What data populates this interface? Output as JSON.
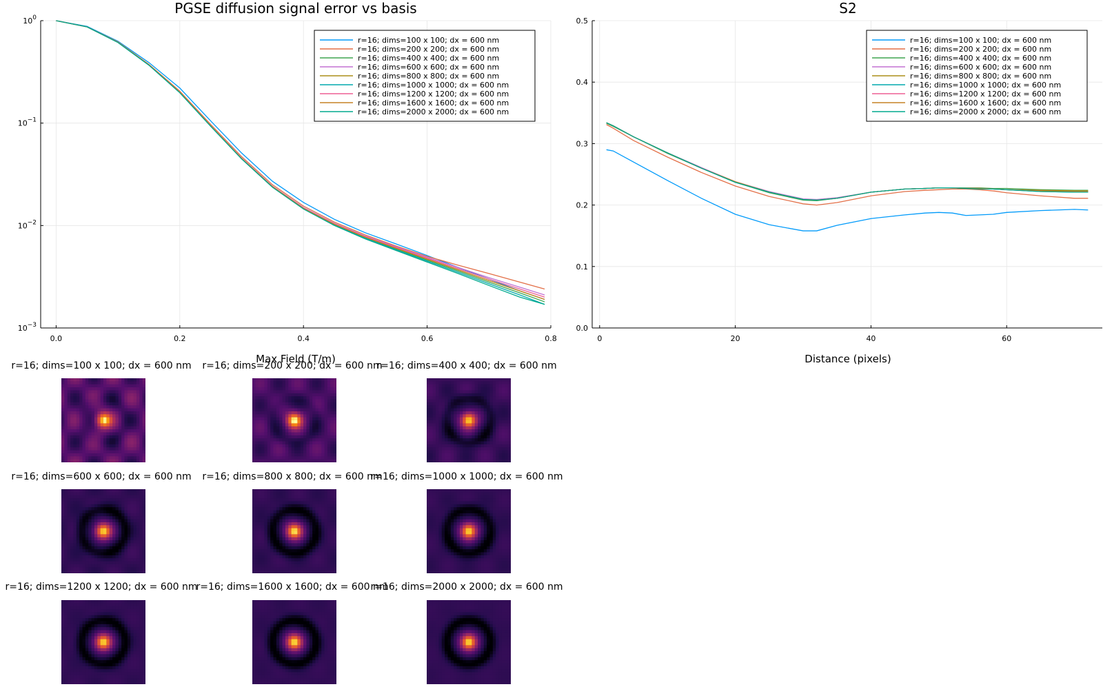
{
  "chart_data": [
    {
      "type": "line",
      "title": "PGSE diffusion signal error vs basis",
      "xlabel": "Max Field (T/m)",
      "ylabel": "",
      "y_scale": "log10",
      "xlim": [
        -0.025,
        0.8
      ],
      "ylim": [
        0.001,
        1
      ],
      "x_ticks": [
        0.0,
        0.2,
        0.4,
        0.6,
        0.8
      ],
      "x_tick_labels": [
        "0.0",
        "0.2",
        "0.4",
        "0.6",
        "0.8"
      ],
      "y_ticks": [
        0.001,
        0.01,
        0.1,
        1
      ],
      "y_tick_labels": [
        {
          "base": "10",
          "exp": "−3"
        },
        {
          "base": "10",
          "exp": "−2"
        },
        {
          "base": "10",
          "exp": "−1"
        },
        {
          "base": "10",
          "exp": "0"
        }
      ],
      "grid": true,
      "legend_position": "top-right",
      "x": [
        0.0,
        0.05,
        0.1,
        0.15,
        0.2,
        0.25,
        0.3,
        0.35,
        0.4,
        0.45,
        0.5,
        0.55,
        0.6,
        0.65,
        0.7,
        0.75,
        0.79
      ],
      "series": [
        {
          "name": "r=16; dims=100 x 100; dx = 600 nm",
          "color": "#009AFA",
          "values": [
            1.0,
            0.88,
            0.63,
            0.39,
            0.22,
            0.105,
            0.051,
            0.027,
            0.0168,
            0.0115,
            0.0085,
            0.0066,
            0.0051,
            0.0039,
            0.003,
            0.0023,
            0.0019
          ]
        },
        {
          "name": "r=16; dims=200 x 200; dx = 600 nm",
          "color": "#E36F47",
          "values": [
            1.0,
            0.87,
            0.62,
            0.375,
            0.205,
            0.097,
            0.047,
            0.025,
            0.0155,
            0.0108,
            0.0081,
            0.0063,
            0.005,
            0.0041,
            0.0034,
            0.0028,
            0.0024
          ]
        },
        {
          "name": "r=16; dims=400 x 400; dx = 600 nm",
          "color": "#3EA44E",
          "values": [
            1.0,
            0.87,
            0.615,
            0.37,
            0.2,
            0.094,
            0.045,
            0.0238,
            0.0147,
            0.0102,
            0.0076,
            0.0059,
            0.0046,
            0.0036,
            0.0028,
            0.0022,
            0.0018
          ]
        },
        {
          "name": "r=16; dims=600 x 600; dx = 600 nm",
          "color": "#C371D2",
          "values": [
            1.0,
            0.87,
            0.615,
            0.37,
            0.2,
            0.094,
            0.0455,
            0.0242,
            0.015,
            0.0105,
            0.0079,
            0.0062,
            0.0049,
            0.0039,
            0.0031,
            0.0025,
            0.0021
          ]
        },
        {
          "name": "r=16; dims=800 x 800; dx = 600 nm",
          "color": "#AC8D18",
          "values": [
            1.0,
            0.87,
            0.615,
            0.37,
            0.2,
            0.094,
            0.0452,
            0.024,
            0.0148,
            0.0103,
            0.0077,
            0.006,
            0.0047,
            0.0037,
            0.0029,
            0.0023,
            0.0019
          ]
        },
        {
          "name": "r=16; dims=1000 x 1000; dx = 600 nm",
          "color": "#00A9AD",
          "values": [
            1.0,
            0.87,
            0.612,
            0.368,
            0.198,
            0.093,
            0.0448,
            0.0237,
            0.0146,
            0.0101,
            0.0075,
            0.0058,
            0.0045,
            0.0035,
            0.0027,
            0.0021,
            0.0017
          ]
        },
        {
          "name": "r=16; dims=1200 x 1200; dx = 600 nm",
          "color": "#ED5E93",
          "values": [
            1.0,
            0.87,
            0.615,
            0.37,
            0.2,
            0.094,
            0.0452,
            0.024,
            0.0148,
            0.0104,
            0.0078,
            0.0061,
            0.0048,
            0.0038,
            0.003,
            0.0024,
            0.002
          ]
        },
        {
          "name": "r=16; dims=1600 x 1600; dx = 600 nm",
          "color": "#C68225",
          "values": [
            1.0,
            0.87,
            0.615,
            0.37,
            0.2,
            0.094,
            0.0451,
            0.0239,
            0.0147,
            0.0103,
            0.0077,
            0.006,
            0.0047,
            0.0037,
            0.0029,
            0.0023,
            0.0019
          ]
        },
        {
          "name": "r=16; dims=2000 x 2000; dx = 600 nm",
          "color": "#00A98D",
          "values": [
            1.0,
            0.87,
            0.612,
            0.368,
            0.198,
            0.093,
            0.0447,
            0.0236,
            0.0145,
            0.01,
            0.0074,
            0.0057,
            0.0044,
            0.0034,
            0.0026,
            0.002,
            0.0017
          ]
        }
      ]
    },
    {
      "type": "line",
      "title": "S2",
      "xlabel": "Distance (pixels)",
      "ylabel": "",
      "xlim": [
        -1.1,
        74.1
      ],
      "ylim": [
        0.0,
        0.5
      ],
      "x_ticks": [
        0,
        20,
        40,
        60
      ],
      "x_tick_labels": [
        "0",
        "20",
        "40",
        "60"
      ],
      "y_ticks": [
        0.0,
        0.1,
        0.2,
        0.3,
        0.4,
        0.5
      ],
      "y_tick_labels": [
        "0.0",
        "0.1",
        "0.2",
        "0.3",
        "0.4",
        "0.5"
      ],
      "grid": true,
      "legend_position": "top-right",
      "x": [
        1,
        2,
        5,
        10,
        15,
        20,
        25,
        30,
        32,
        35,
        40,
        45,
        48,
        50,
        52,
        54,
        56,
        58,
        60,
        65,
        70,
        72
      ],
      "series": [
        {
          "name": "r=16; dims=100 x 100; dx = 600 nm",
          "color": "#009AFA",
          "values": [
            0.29,
            0.288,
            0.27,
            0.24,
            0.211,
            0.185,
            0.168,
            0.158,
            0.158,
            0.167,
            0.178,
            0.184,
            0.187,
            0.188,
            0.187,
            0.183,
            0.184,
            0.185,
            0.188,
            0.191,
            0.193,
            0.192
          ]
        },
        {
          "name": "r=16; dims=200 x 200; dx = 600 nm",
          "color": "#E36F47",
          "values": [
            0.331,
            0.325,
            0.305,
            0.278,
            0.253,
            0.231,
            0.214,
            0.202,
            0.2,
            0.204,
            0.215,
            0.222,
            0.224,
            0.225,
            0.226,
            0.226,
            0.225,
            0.223,
            0.22,
            0.215,
            0.211,
            0.211
          ]
        },
        {
          "name": "r=16; dims=400 x 400; dx = 600 nm",
          "color": "#3EA44E",
          "values": [
            0.333,
            0.328,
            0.311,
            0.284,
            0.26,
            0.237,
            0.22,
            0.208,
            0.207,
            0.211,
            0.221,
            0.226,
            0.227,
            0.228,
            0.228,
            0.228,
            0.228,
            0.227,
            0.227,
            0.225,
            0.224,
            0.224
          ]
        },
        {
          "name": "r=16; dims=600 x 600; dx = 600 nm",
          "color": "#C371D2",
          "values": [
            0.334,
            0.329,
            0.311,
            0.285,
            0.261,
            0.238,
            0.222,
            0.21,
            0.209,
            0.212,
            0.221,
            0.226,
            0.227,
            0.228,
            0.228,
            0.227,
            0.227,
            0.226,
            0.225,
            0.223,
            0.222,
            0.222
          ]
        },
        {
          "name": "r=16; dims=800 x 800; dx = 600 nm",
          "color": "#AC8D18",
          "values": [
            0.334,
            0.329,
            0.311,
            0.285,
            0.26,
            0.238,
            0.221,
            0.209,
            0.208,
            0.211,
            0.221,
            0.226,
            0.227,
            0.228,
            0.228,
            0.227,
            0.227,
            0.226,
            0.225,
            0.224,
            0.223,
            0.223
          ]
        },
        {
          "name": "r=16; dims=1000 x 1000; dx = 600 nm",
          "color": "#00A9AD",
          "values": [
            0.334,
            0.329,
            0.311,
            0.285,
            0.26,
            0.237,
            0.221,
            0.209,
            0.208,
            0.211,
            0.221,
            0.226,
            0.227,
            0.228,
            0.228,
            0.227,
            0.226,
            0.226,
            0.225,
            0.222,
            0.221,
            0.221
          ]
        },
        {
          "name": "r=16; dims=1200 x 1200; dx = 600 nm",
          "color": "#ED5E93",
          "values": [
            0.334,
            0.329,
            0.311,
            0.285,
            0.26,
            0.238,
            0.221,
            0.209,
            0.208,
            0.211,
            0.221,
            0.226,
            0.227,
            0.228,
            0.228,
            0.227,
            0.227,
            0.226,
            0.225,
            0.223,
            0.222,
            0.222
          ]
        },
        {
          "name": "r=16; dims=1600 x 1600; dx = 600 nm",
          "color": "#C68225",
          "values": [
            0.334,
            0.329,
            0.311,
            0.285,
            0.26,
            0.238,
            0.221,
            0.209,
            0.208,
            0.211,
            0.221,
            0.226,
            0.227,
            0.228,
            0.228,
            0.227,
            0.227,
            0.226,
            0.225,
            0.223,
            0.222,
            0.222
          ]
        },
        {
          "name": "r=16; dims=2000 x 2000; dx = 600 nm",
          "color": "#00A98D",
          "values": [
            0.334,
            0.329,
            0.311,
            0.285,
            0.26,
            0.237,
            0.221,
            0.209,
            0.208,
            0.211,
            0.221,
            0.226,
            0.227,
            0.228,
            0.228,
            0.227,
            0.226,
            0.226,
            0.225,
            0.222,
            0.221,
            0.221
          ]
        }
      ]
    },
    {
      "type": "heatmap",
      "colormap": "inferno",
      "images": [
        {
          "title": "r=16; dims=100 x 100; dx = 600 nm",
          "background": 0.3,
          "ring_depth": 0.25,
          "blob_amplitude": 0.15
        },
        {
          "title": "r=16; dims=200 x 200; dx = 600 nm",
          "background": 0.26,
          "ring_depth": 0.35,
          "blob_amplitude": 0.09
        },
        {
          "title": "r=16; dims=400 x 400; dx = 600 nm",
          "background": 0.22,
          "ring_depth": 0.7,
          "blob_amplitude": 0.06
        },
        {
          "title": "r=16; dims=600 x 600; dx = 600 nm",
          "background": 0.2,
          "ring_depth": 0.85,
          "blob_amplitude": 0.04
        },
        {
          "title": "r=16; dims=800 x 800; dx = 600 nm",
          "background": 0.2,
          "ring_depth": 0.9,
          "blob_amplitude": 0.03
        },
        {
          "title": "r=16; dims=1000 x 1000; dx = 600 nm",
          "background": 0.2,
          "ring_depth": 0.92,
          "blob_amplitude": 0.025
        },
        {
          "title": "r=16; dims=1200 x 1200; dx = 600 nm",
          "background": 0.2,
          "ring_depth": 0.95,
          "blob_amplitude": 0.02
        },
        {
          "title": "r=16; dims=1600 x 1600; dx = 600 nm",
          "background": 0.2,
          "ring_depth": 0.96,
          "blob_amplitude": 0.015
        },
        {
          "title": "r=16; dims=2000 x 2000; dx = 600 nm",
          "background": 0.2,
          "ring_depth": 0.97,
          "blob_amplitude": 0.01
        }
      ]
    }
  ]
}
